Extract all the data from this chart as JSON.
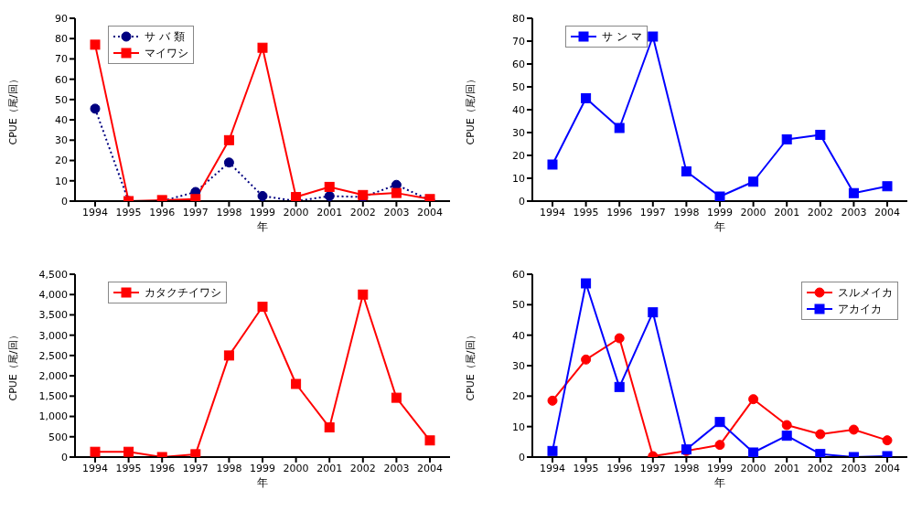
{
  "chart_data": [
    {
      "type": "line",
      "xlabel": "年",
      "ylabel": "CPUE（尾/回）",
      "categories": [
        "1994",
        "1995",
        "1996",
        "1997",
        "1998",
        "1999",
        "2000",
        "2001",
        "2002",
        "2003",
        "2004"
      ],
      "ylim": [
        0,
        90
      ],
      "yticks": [
        0,
        10,
        20,
        30,
        40,
        50,
        60,
        70,
        80,
        90
      ],
      "legend": "top left",
      "series": [
        {
          "name": "サ バ 類",
          "color": "#000080",
          "marker": "circle",
          "line_style": "dotted",
          "values": [
            45.5,
            0,
            0,
            4.5,
            19,
            2.5,
            0,
            2.5,
            2,
            8,
            0.5
          ]
        },
        {
          "name": "マイワシ",
          "color": "#ff0000",
          "marker": "square",
          "line_style": "solid",
          "values": [
            77,
            0,
            0.5,
            1,
            30,
            75.5,
            2,
            7,
            3,
            4,
            1
          ]
        }
      ]
    },
    {
      "type": "line",
      "xlabel": "年",
      "ylabel": "CPUE（尾/回）",
      "categories": [
        "1994",
        "1995",
        "1996",
        "1997",
        "1998",
        "1999",
        "2000",
        "2001",
        "2002",
        "2003",
        "2004"
      ],
      "ylim": [
        0,
        80
      ],
      "yticks": [
        0,
        10,
        20,
        30,
        40,
        50,
        60,
        70,
        80
      ],
      "legend": "top left",
      "series": [
        {
          "name": "サ ン マ",
          "color": "#0000ff",
          "marker": "square",
          "line_style": "solid",
          "values": [
            16,
            45,
            32,
            72,
            13,
            2,
            8.5,
            27,
            29,
            3.5,
            6.5
          ]
        }
      ]
    },
    {
      "type": "line",
      "xlabel": "年",
      "ylabel": "CPUE（尾/回）",
      "categories": [
        "1994",
        "1995",
        "1996",
        "1997",
        "1998",
        "1999",
        "2000",
        "2001",
        "2002",
        "2003",
        "2004"
      ],
      "ylim": [
        0,
        4500
      ],
      "yticks": [
        0,
        500,
        {
          "value": 1000,
          "label": "1,000"
        },
        {
          "value": 1500,
          "label": "1,500"
        },
        {
          "value": 2000,
          "label": "2,000"
        },
        {
          "value": 2500,
          "label": "2,500"
        },
        {
          "value": 3000,
          "label": "3,000"
        },
        {
          "value": 3500,
          "label": "3,500"
        },
        {
          "value": 4000,
          "label": "4,000"
        },
        {
          "value": 4500,
          "label": "4,500"
        }
      ],
      "legend": "top left",
      "series": [
        {
          "name": "カタクチイワシ",
          "color": "#ff0000",
          "marker": "square",
          "line_style": "solid",
          "values": [
            130,
            130,
            0,
            70,
            2500,
            3700,
            1800,
            730,
            4000,
            1460,
            410
          ]
        }
      ]
    },
    {
      "type": "line",
      "xlabel": "年",
      "ylabel": "CPUE（尾/回）",
      "categories": [
        "1994",
        "1995",
        "1996",
        "1997",
        "1998",
        "1999",
        "2000",
        "2001",
        "2002",
        "2003",
        "2004"
      ],
      "ylim": [
        0,
        60
      ],
      "yticks": [
        0,
        10,
        20,
        30,
        40,
        50,
        60
      ],
      "legend": "top right",
      "series": [
        {
          "name": "スルメイカ",
          "color": "#ff0000",
          "marker": "circle",
          "line_style": "solid",
          "values": [
            18.5,
            32,
            39,
            0.3,
            2,
            4,
            19,
            10.5,
            7.5,
            9,
            5.5
          ]
        },
        {
          "name": "アカイカ",
          "color": "#0000ff",
          "marker": "square",
          "line_style": "solid",
          "values": [
            2,
            57,
            23,
            47.5,
            2.5,
            11.5,
            1.5,
            7,
            1,
            0,
            0.3
          ]
        }
      ]
    }
  ]
}
